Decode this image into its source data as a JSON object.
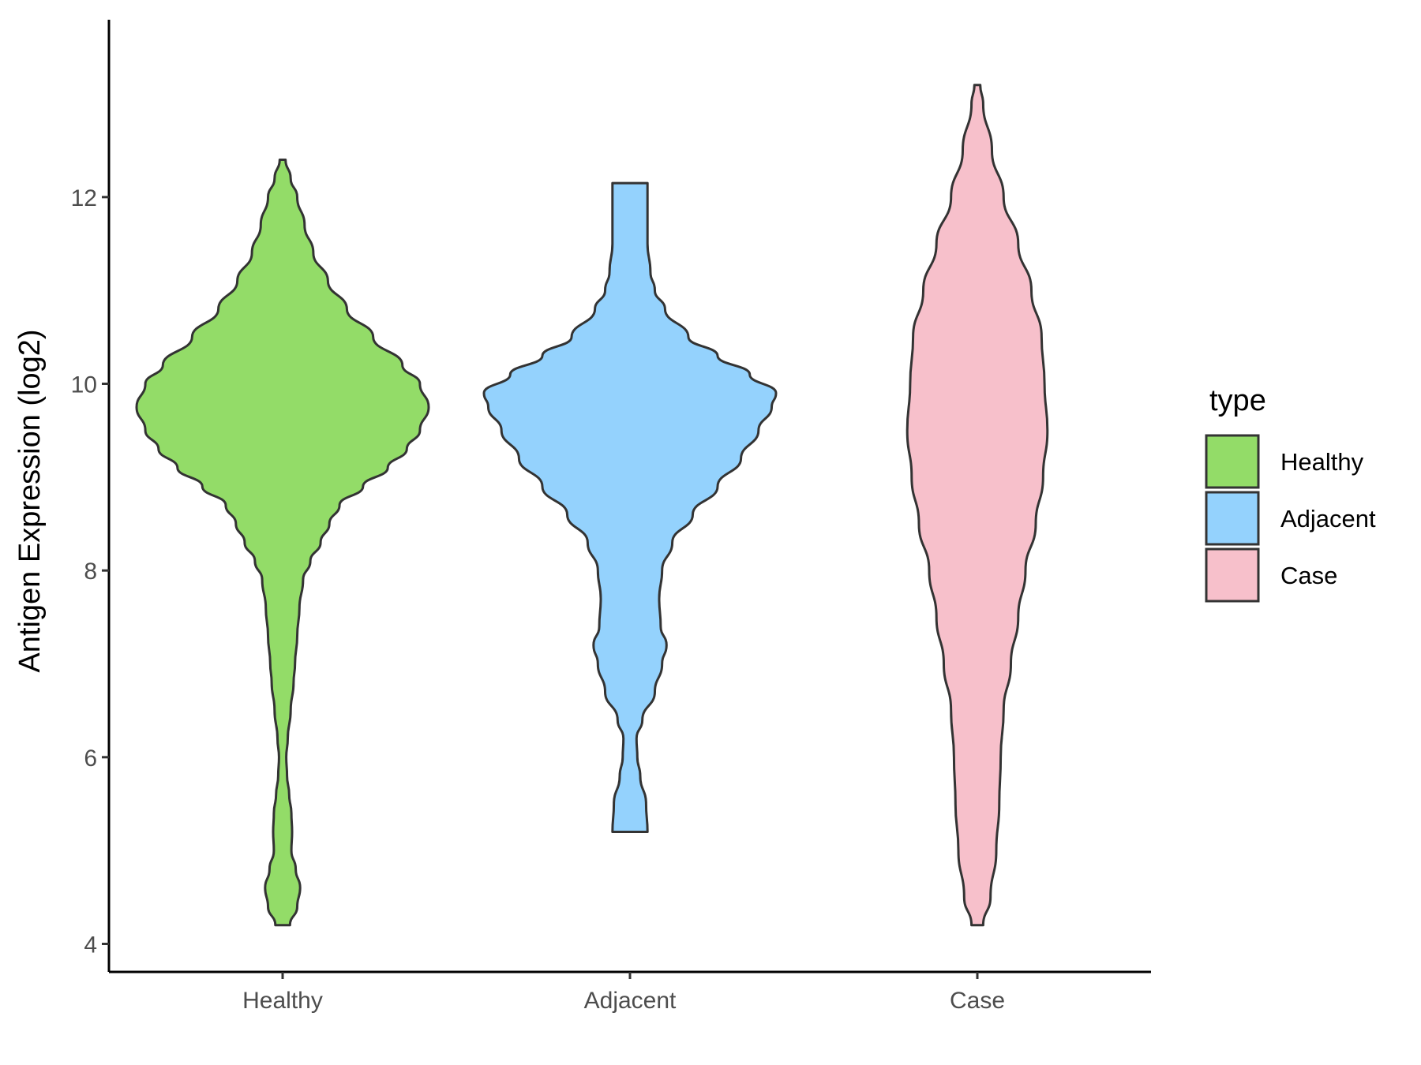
{
  "chart_data": {
    "type": "violin",
    "ylabel": "Antigen Expression (log2)",
    "xlabel": "",
    "ylim": [
      3.7,
      13.9
    ],
    "yticks": [
      4,
      6,
      8,
      10,
      12
    ],
    "categories": [
      "Healthy",
      "Adjacent",
      "Case"
    ],
    "legend": {
      "title": "type",
      "position": "right"
    },
    "grid": false,
    "series": [
      {
        "name": "Healthy",
        "color": "#93dc68",
        "range": [
          4.2,
          12.4
        ],
        "density": [
          [
            4.2,
            0.05
          ],
          [
            4.4,
            0.1
          ],
          [
            4.6,
            0.12
          ],
          [
            4.8,
            0.09
          ],
          [
            5.0,
            0.06
          ],
          [
            5.2,
            0.065
          ],
          [
            5.4,
            0.06
          ],
          [
            5.6,
            0.045
          ],
          [
            5.8,
            0.03
          ],
          [
            6.0,
            0.025
          ],
          [
            6.2,
            0.035
          ],
          [
            6.5,
            0.055
          ],
          [
            6.8,
            0.075
          ],
          [
            7.0,
            0.085
          ],
          [
            7.3,
            0.1
          ],
          [
            7.6,
            0.115
          ],
          [
            7.9,
            0.14
          ],
          [
            8.1,
            0.19
          ],
          [
            8.3,
            0.26
          ],
          [
            8.5,
            0.32
          ],
          [
            8.7,
            0.39
          ],
          [
            8.9,
            0.55
          ],
          [
            9.1,
            0.72
          ],
          [
            9.3,
            0.85
          ],
          [
            9.5,
            0.94
          ],
          [
            9.75,
            1.0
          ],
          [
            10.0,
            0.94
          ],
          [
            10.2,
            0.82
          ],
          [
            10.5,
            0.62
          ],
          [
            10.8,
            0.44
          ],
          [
            11.1,
            0.31
          ],
          [
            11.4,
            0.21
          ],
          [
            11.7,
            0.15
          ],
          [
            12.0,
            0.1
          ],
          [
            12.2,
            0.055
          ],
          [
            12.4,
            0.02
          ]
        ]
      },
      {
        "name": "Adjacent",
        "color": "#94d2fd",
        "range": [
          5.2,
          12.15
        ],
        "density": [
          [
            5.2,
            0.12
          ],
          [
            5.5,
            0.11
          ],
          [
            5.8,
            0.07
          ],
          [
            6.0,
            0.05
          ],
          [
            6.2,
            0.045
          ],
          [
            6.4,
            0.085
          ],
          [
            6.7,
            0.17
          ],
          [
            7.0,
            0.22
          ],
          [
            7.2,
            0.25
          ],
          [
            7.4,
            0.21
          ],
          [
            7.7,
            0.2
          ],
          [
            8.0,
            0.22
          ],
          [
            8.3,
            0.29
          ],
          [
            8.6,
            0.43
          ],
          [
            8.9,
            0.6
          ],
          [
            9.2,
            0.76
          ],
          [
            9.5,
            0.88
          ],
          [
            9.75,
            0.97
          ],
          [
            9.9,
            1.0
          ],
          [
            10.1,
            0.82
          ],
          [
            10.3,
            0.6
          ],
          [
            10.5,
            0.4
          ],
          [
            10.8,
            0.24
          ],
          [
            11.0,
            0.17
          ],
          [
            11.2,
            0.14
          ],
          [
            11.5,
            0.12
          ],
          [
            11.8,
            0.12
          ],
          [
            12.15,
            0.12
          ]
        ]
      },
      {
        "name": "Case",
        "color": "#f7c0cb",
        "range": [
          4.2,
          13.2
        ],
        "density": [
          [
            4.2,
            0.04
          ],
          [
            4.5,
            0.09
          ],
          [
            5.0,
            0.13
          ],
          [
            5.5,
            0.15
          ],
          [
            6.0,
            0.16
          ],
          [
            6.5,
            0.18
          ],
          [
            7.0,
            0.23
          ],
          [
            7.5,
            0.28
          ],
          [
            8.0,
            0.33
          ],
          [
            8.5,
            0.4
          ],
          [
            9.0,
            0.45
          ],
          [
            9.5,
            0.48
          ],
          [
            10.0,
            0.46
          ],
          [
            10.5,
            0.44
          ],
          [
            11.0,
            0.37
          ],
          [
            11.5,
            0.28
          ],
          [
            12.0,
            0.18
          ],
          [
            12.5,
            0.1
          ],
          [
            13.0,
            0.04
          ],
          [
            13.2,
            0.02
          ]
        ]
      }
    ]
  }
}
